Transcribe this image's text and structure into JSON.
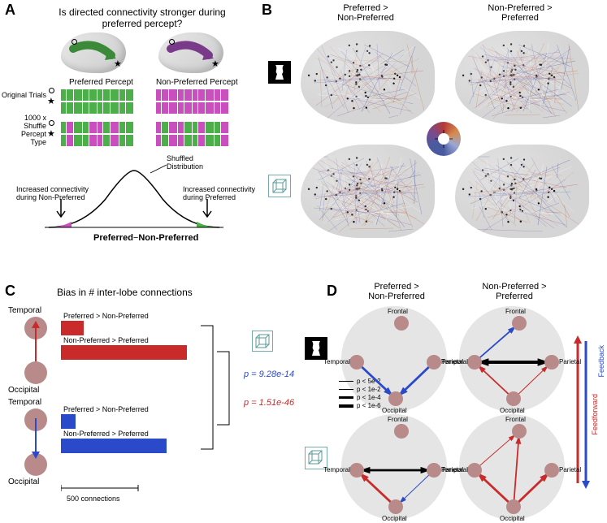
{
  "panelLabels": {
    "A": "A",
    "B": "B",
    "C": "C",
    "D": "D"
  },
  "panelA": {
    "title": "Is directed connectivity stronger during preferred percept?",
    "preferredLabel": "Preferred Percept",
    "nonPreferredLabel": "Non-Preferred Percept",
    "originalTrials": "Original Trials",
    "shuffleLabel": "1000 x\nShuffle Percept\nType",
    "shuffledDist": "Shuffled\nDistribution",
    "leftTail": "Increased connectivity\nduring Non-Preferred",
    "rightTail": "Increased connectivity\nduring Preferred",
    "xAxisLeft": "Preferred",
    "xAxisRight": "Non-Preferred",
    "xAxisMinus": "−",
    "colors": {
      "preferred": "#4caf4a",
      "nonPreferred": "#c94fbf",
      "brainArrowGreen": "#3a8a3a",
      "brainArrowPurple": "#7a3a8a"
    },
    "trialBlocks": {
      "origPref": [
        1,
        1,
        1,
        1,
        1,
        1,
        1,
        1,
        1,
        1
      ],
      "origNonPref": [
        0,
        0,
        0,
        0,
        0,
        0,
        0,
        0,
        0,
        0
      ],
      "shufPref": [
        1,
        0,
        1,
        1,
        0,
        0,
        1,
        0,
        1,
        1
      ],
      "shufNonPref": [
        0,
        1,
        0,
        0,
        1,
        1,
        0,
        1,
        1,
        0
      ]
    }
  },
  "panelB": {
    "headerLeft": "Preferred >\nNon-Preferred",
    "headerRight": "Non-Preferred >\nPreferred",
    "edgeColors": [
      "#3a4a9a",
      "#5a6ab8",
      "#8a6aa8",
      "#b05a5a",
      "#c87a4a",
      "#d89a6a",
      "#ffffff"
    ],
    "numElectrodesApprox": 55,
    "numConnectionsApprox": 120
  },
  "panelC": {
    "title": "Bias in # inter-lobe connections",
    "topNode": "Temporal",
    "bottomNode": "Occipital",
    "rows": [
      {
        "label": "Preferred > Non-Preferred",
        "length": 28,
        "color": "#c92a2a"
      },
      {
        "label": "Non-Preferred > Preferred",
        "length": 155,
        "color": "#c92a2a"
      },
      {
        "label": "Preferred > Non-Preferred",
        "length": 18,
        "color": "#2a4ac9"
      },
      {
        "label": "Non-Preferred > Preferred",
        "length": 130,
        "color": "#2a4ac9"
      }
    ],
    "pRed": "p = 1.51e-46",
    "pBlue": "p = 9.28e-14",
    "pRedColor": "#c92a2a",
    "pBlueColor": "#2a4ac9",
    "scaleLabel": "500 connections",
    "scaleWidth": 95,
    "arrowUpColor": "#c92a2a",
    "arrowDownColor": "#2a4ac9"
  },
  "panelD": {
    "headerLeft": "Preferred >\nNon-Preferred",
    "headerRight": "Non-Preferred >\nPreferred",
    "lobes": [
      "Frontal",
      "Temporal",
      "Parietal",
      "Occipital"
    ],
    "legend": [
      {
        "label": "p < 5e-2",
        "width": 1
      },
      {
        "label": "p < 1e-2",
        "width": 1.8
      },
      {
        "label": "p < 1e-4",
        "width": 2.8
      },
      {
        "label": "p < 1e-6",
        "width": 4
      }
    ],
    "ffLabel": "Feedforward",
    "fbLabel": "Feedback",
    "ffColor": "#c92a2a",
    "fbColor": "#2a4ac9",
    "diagrams": {
      "topLeft": [
        {
          "from": "Temporal",
          "to": "Occipital",
          "color": "#2a4ac9",
          "width": 2.8,
          "bidir": false
        },
        {
          "from": "Parietal",
          "to": "Occipital",
          "color": "#2a4ac9",
          "width": 2.8,
          "bidir": false
        }
      ],
      "topRight": [
        {
          "from": "Temporal",
          "to": "Frontal",
          "color": "#2a4ac9",
          "width": 1.8,
          "bidir": false
        },
        {
          "from": "Temporal",
          "to": "Parietal",
          "color": "#000000",
          "width": 4,
          "bidir": true
        },
        {
          "from": "Occipital",
          "to": "Temporal",
          "color": "#c92a2a",
          "width": 1.8,
          "bidir": false
        },
        {
          "from": "Occipital",
          "to": "Parietal",
          "color": "#c92a2a",
          "width": 1,
          "bidir": false
        }
      ],
      "bottomLeft": [
        {
          "from": "Occipital",
          "to": "Temporal",
          "color": "#c92a2a",
          "width": 2.8,
          "bidir": false
        },
        {
          "from": "Temporal",
          "to": "Parietal",
          "color": "#000000",
          "width": 2.8,
          "bidir": true
        },
        {
          "from": "Parietal",
          "to": "Occipital",
          "color": "#2a4ac9",
          "width": 1,
          "bidir": false
        }
      ],
      "bottomRight": [
        {
          "from": "Occipital",
          "to": "Frontal",
          "color": "#c92a2a",
          "width": 1.8,
          "bidir": false
        },
        {
          "from": "Occipital",
          "to": "Temporal",
          "color": "#c92a2a",
          "width": 2.8,
          "bidir": false
        },
        {
          "from": "Occipital",
          "to": "Parietal",
          "color": "#c92a2a",
          "width": 2.8,
          "bidir": false
        },
        {
          "from": "Temporal",
          "to": "Frontal",
          "color": "#c92a2a",
          "width": 1,
          "bidir": false
        }
      ]
    }
  }
}
